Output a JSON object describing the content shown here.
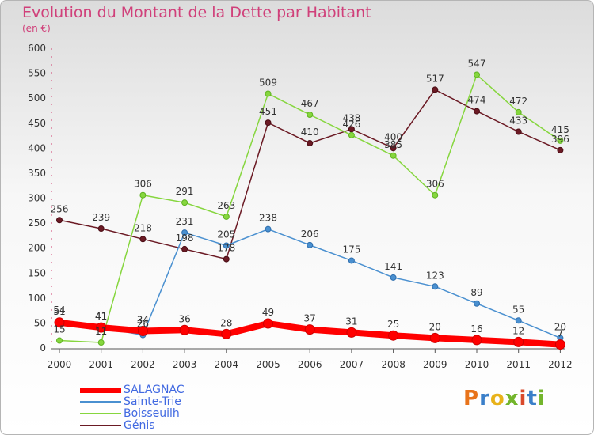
{
  "title": "Evolution du Montant de la Dette par Habitant",
  "unit_label": "(en €)",
  "logo_text": "Proxiti",
  "chart_data": {
    "type": "line",
    "x": [
      "2000",
      "2001",
      "2002",
      "2003",
      "2004",
      "2005",
      "2006",
      "2007",
      "2008",
      "2009",
      "2010",
      "2011",
      "2012"
    ],
    "ylim": [
      0,
      600
    ],
    "yticks": [
      0,
      50,
      100,
      150,
      200,
      250,
      300,
      350,
      400,
      450,
      500,
      550,
      600
    ],
    "grid": false,
    "legend_placement": "bottom-left",
    "series": [
      {
        "name": "Génis",
        "color": "#6b1a24",
        "values": [
          256,
          239,
          218,
          198,
          178,
          451,
          410,
          438,
          400,
          517,
          474,
          433,
          396
        ]
      },
      {
        "name": "Boisseuilh",
        "color": "#86d63e",
        "values": [
          15,
          11,
          306,
          291,
          263,
          509,
          467,
          426,
          385,
          306,
          547,
          472,
          415
        ]
      },
      {
        "name": "Sainte-Trie",
        "color": "#4a90d0",
        "values": [
          54,
          41,
          26,
          231,
          205,
          238,
          206,
          175,
          141,
          123,
          89,
          55,
          20
        ]
      },
      {
        "name": "SALAGNAC",
        "color": "#ff0000",
        "values": [
          51,
          41,
          34,
          36,
          28,
          49,
          37,
          31,
          25,
          20,
          16,
          12,
          7
        ]
      }
    ]
  }
}
